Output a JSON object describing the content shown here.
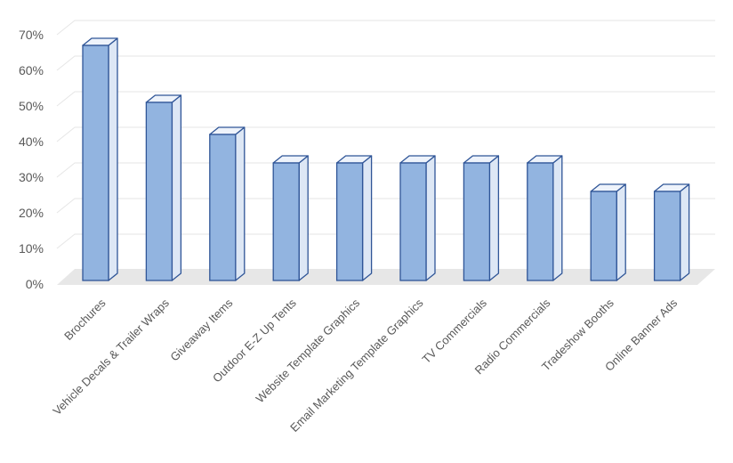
{
  "chart_data": {
    "type": "bar",
    "style": "3d-column",
    "categories": [
      "Brochures",
      "Vehicle Decals & Trailer Wraps",
      "Giveaway Items",
      "Outdoor E-Z Up Tents",
      "Website Template Graphics",
      "Email Marketing Template Graphics",
      "TV Commercials",
      "Radio Commercials",
      "Tradeshow Booths",
      "Online Banner Ads"
    ],
    "values": [
      66,
      50,
      41,
      33,
      33,
      33,
      33,
      33,
      25,
      25
    ],
    "title": "",
    "xlabel": "",
    "ylabel": "",
    "ylim": [
      0,
      70
    ],
    "yticks": [
      "0%",
      "10%",
      "20%",
      "30%",
      "40%",
      "50%",
      "60%",
      "70%"
    ],
    "grid": true,
    "legend": "none",
    "colors": {
      "bar_front": "#92b4e0",
      "bar_side": "#dde7f5",
      "bar_top": "#eef3fb",
      "bar_outline": "#2f5597",
      "floor": "#e7e7e7",
      "gridline": "#e6e6e6"
    }
  }
}
